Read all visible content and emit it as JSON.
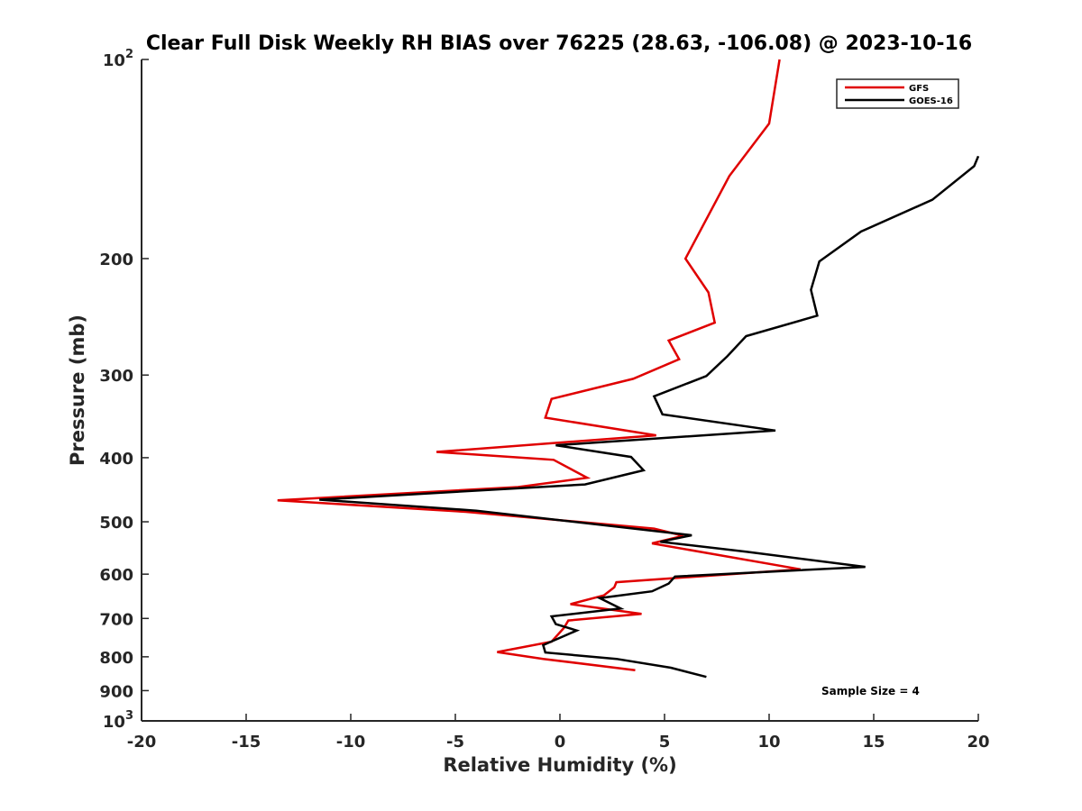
{
  "chart_data": {
    "type": "line",
    "title": "Clear Full Disk Weekly RH BIAS over 76225 (28.63, -106.08) @ 2023-10-16",
    "xlabel": "Relative Humidity (%)",
    "ylabel": "Pressure (mb)",
    "xlim": [
      -20,
      20
    ],
    "ylim": [
      100,
      1000
    ],
    "yscale": "log",
    "y_reversed": true,
    "grid": false,
    "legend_position": "top-right",
    "x_ticks": [
      "-20",
      "-15",
      "-10",
      "-5",
      "0",
      "5",
      "10",
      "15",
      "20"
    ],
    "y_ticks": [
      {
        "value": 100,
        "base": "10",
        "exp": "2"
      },
      {
        "value": 200,
        "label": "200"
      },
      {
        "value": 300,
        "label": "300"
      },
      {
        "value": 400,
        "label": "400"
      },
      {
        "value": 500,
        "label": "500"
      },
      {
        "value": 600,
        "label": "600"
      },
      {
        "value": 700,
        "label": "700"
      },
      {
        "value": 800,
        "label": "800"
      },
      {
        "value": 900,
        "label": "900"
      },
      {
        "value": 1000,
        "base": "10",
        "exp": "3"
      }
    ],
    "annotation": "Sample Size = 4",
    "series": [
      {
        "name": "GFS",
        "color": "#e00000",
        "points": [
          [
            10.5,
            100
          ],
          [
            10.0,
            125
          ],
          [
            8.1,
            150
          ],
          [
            6.0,
            200
          ],
          [
            7.1,
            225
          ],
          [
            7.4,
            250
          ],
          [
            5.2,
            266
          ],
          [
            5.7,
            284
          ],
          [
            3.5,
            304
          ],
          [
            -0.4,
            326
          ],
          [
            -0.7,
            348
          ],
          [
            4.6,
            370
          ],
          [
            -5.9,
            392
          ],
          [
            -0.3,
            403
          ],
          [
            1.3,
            429
          ],
          [
            -2.0,
            443
          ],
          [
            -13.5,
            464
          ],
          [
            -4.5,
            483
          ],
          [
            4.5,
            512
          ],
          [
            5.9,
            525
          ],
          [
            4.4,
            539
          ],
          [
            11.5,
            590
          ],
          [
            2.7,
            617
          ],
          [
            2.6,
            628
          ],
          [
            2.1,
            646
          ],
          [
            0.5,
            666
          ],
          [
            3.9,
            689
          ],
          [
            0.4,
            705
          ],
          [
            0.2,
            723
          ],
          [
            -0.4,
            759
          ],
          [
            -3.0,
            787
          ],
          [
            -0.8,
            806
          ],
          [
            3.6,
            838
          ]
        ]
      },
      {
        "name": "GOES-16",
        "color": "#000000",
        "points": [
          [
            20.0,
            140
          ],
          [
            19.8,
            145
          ],
          [
            17.8,
            163
          ],
          [
            14.4,
            182
          ],
          [
            12.4,
            202
          ],
          [
            12.0,
            223
          ],
          [
            12.3,
            244
          ],
          [
            8.9,
            262
          ],
          [
            8.0,
            281
          ],
          [
            7.0,
            301
          ],
          [
            4.5,
            323
          ],
          [
            4.9,
            344
          ],
          [
            10.3,
            364
          ],
          [
            -0.2,
            383
          ],
          [
            3.4,
            399
          ],
          [
            4.0,
            418
          ],
          [
            1.2,
            439
          ],
          [
            -11.5,
            463
          ],
          [
            -4.0,
            481
          ],
          [
            6.3,
            524
          ],
          [
            4.8,
            536
          ],
          [
            8.9,
            555
          ],
          [
            14.6,
            585
          ],
          [
            5.5,
            605
          ],
          [
            5.2,
            620
          ],
          [
            4.4,
            637
          ],
          [
            1.9,
            652
          ],
          [
            2.9,
            676
          ],
          [
            -0.4,
            695
          ],
          [
            -0.2,
            714
          ],
          [
            0.8,
            730
          ],
          [
            -0.8,
            768
          ],
          [
            -0.7,
            788
          ],
          [
            2.7,
            806
          ],
          [
            5.3,
            831
          ],
          [
            7.0,
            858
          ]
        ]
      }
    ]
  }
}
